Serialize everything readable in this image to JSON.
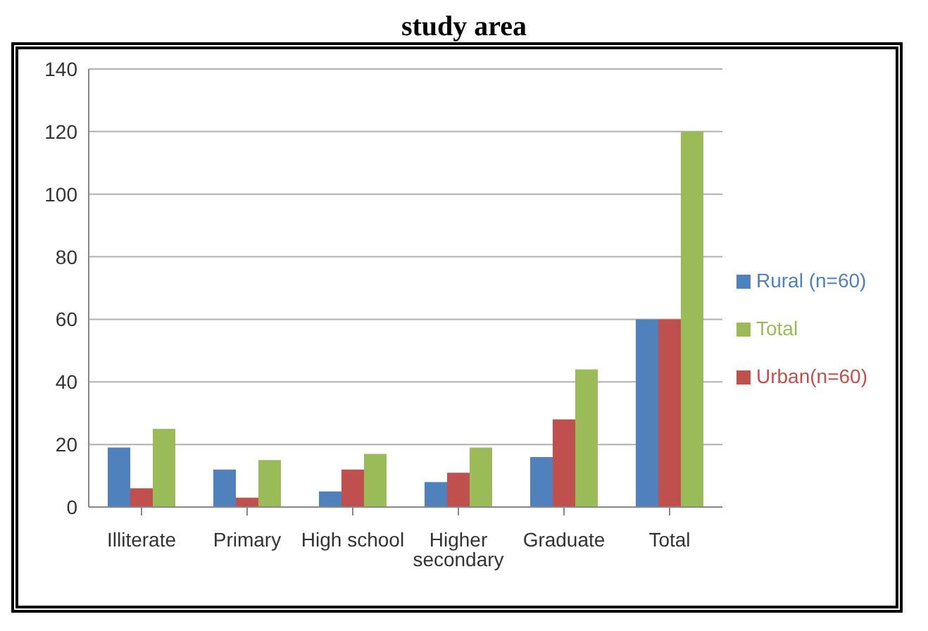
{
  "chart_data": {
    "type": "bar",
    "title": "study area",
    "categories": [
      "Illiterate",
      "Primary",
      "High school",
      "Higher secondary",
      "Graduate",
      "Total"
    ],
    "series": [
      {
        "name": "Rural (n=60)",
        "color": "#4f81bd",
        "values": [
          19,
          12,
          5,
          8,
          16,
          60
        ]
      },
      {
        "name": "Urban(n=60)",
        "color": "#c0504d",
        "values": [
          6,
          3,
          12,
          11,
          28,
          60
        ]
      },
      {
        "name": "Total",
        "color": "#9bbb59",
        "values": [
          25,
          15,
          17,
          19,
          44,
          120
        ]
      }
    ],
    "ylim": [
      0,
      140
    ],
    "yticks": [
      0,
      20,
      40,
      60,
      80,
      100,
      120,
      140
    ],
    "grid": "y",
    "legend": "right"
  }
}
